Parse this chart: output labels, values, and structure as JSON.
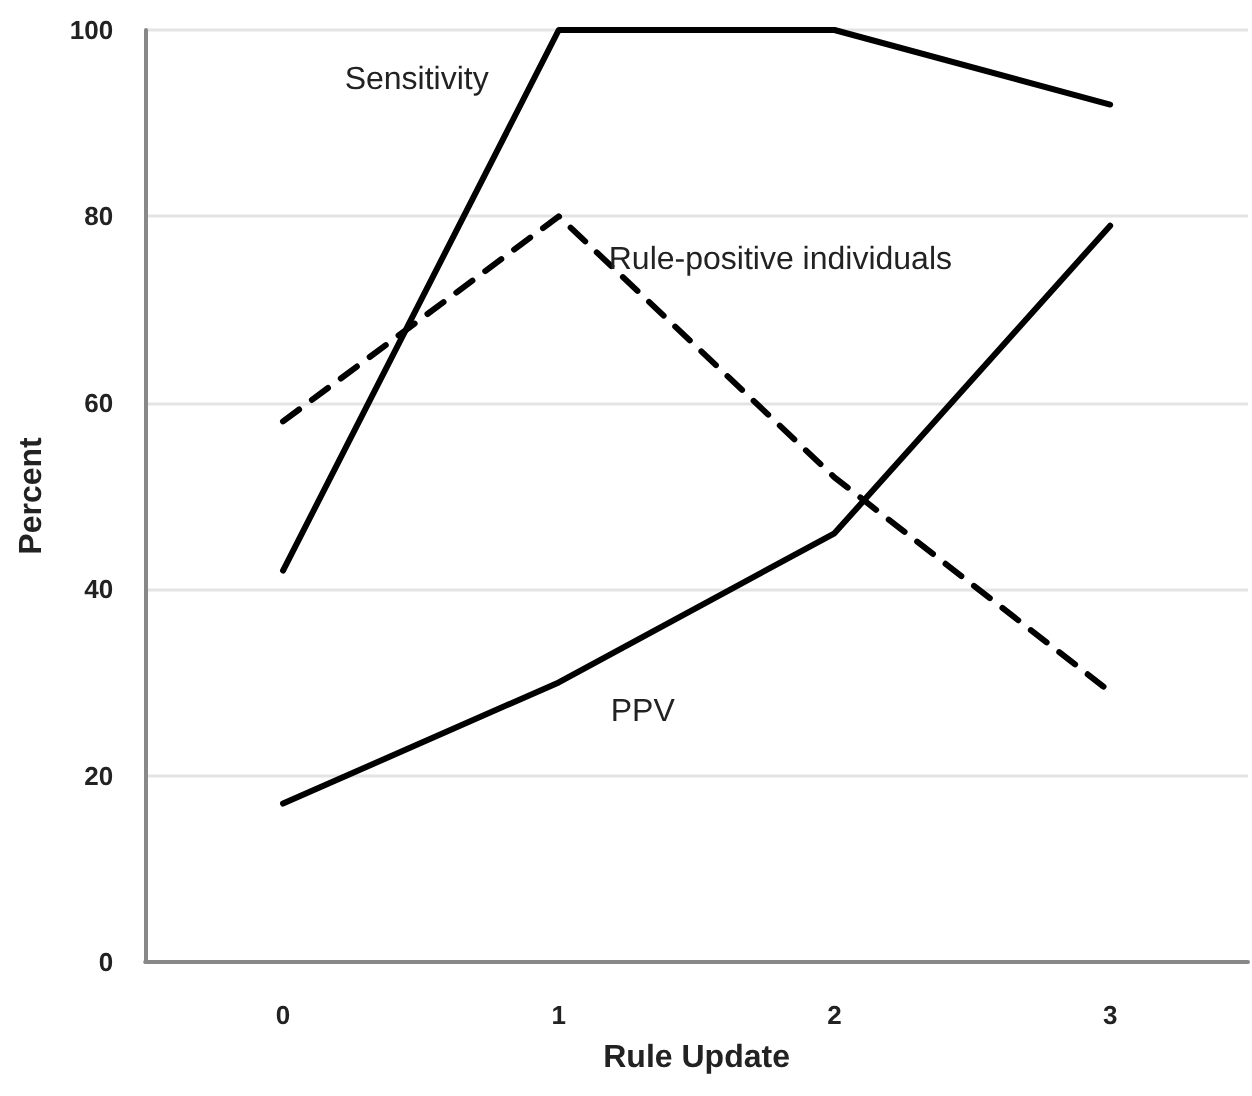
{
  "chart_data": {
    "type": "line",
    "xlabel": "Rule Update",
    "ylabel": "Percent",
    "categories": [
      "0",
      "1",
      "2",
      "3"
    ],
    "series": [
      {
        "name": "Sensitivity",
        "color": "#000000",
        "line_style": "solid",
        "values": [
          42,
          100,
          100,
          92
        ]
      },
      {
        "name": "Rule-positive individuals",
        "color": "#000000",
        "line_style": "dashed",
        "values": [
          58,
          80,
          52,
          29
        ]
      },
      {
        "name": "PPV",
        "color": "#000000",
        "line_style": "solid",
        "values": [
          17,
          30,
          46,
          79
        ]
      }
    ],
    "ylim": [
      0,
      100
    ],
    "yticks": [
      0,
      20,
      40,
      60,
      80,
      100
    ],
    "grid": "y",
    "marker": "none"
  }
}
